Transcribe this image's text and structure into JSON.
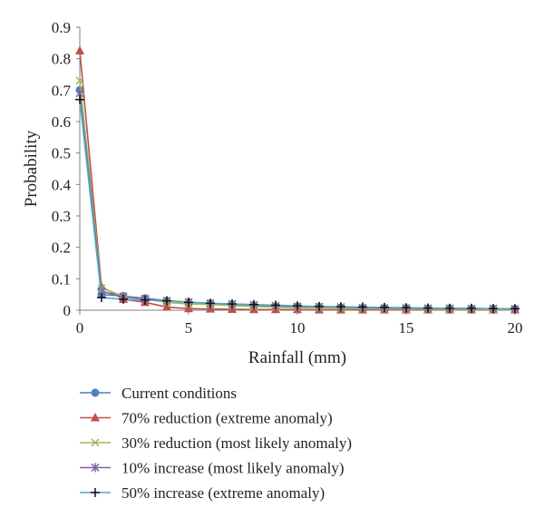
{
  "chart_data": {
    "type": "line",
    "title": "",
    "xlabel": "Rainfall (mm)",
    "ylabel": "Probability",
    "xlim": [
      0,
      20
    ],
    "ylim": [
      0,
      0.9
    ],
    "x_ticks": [
      0,
      5,
      10,
      15,
      20
    ],
    "y_ticks": [
      0,
      0.1,
      0.2,
      0.3,
      0.4,
      0.5,
      0.6,
      0.7,
      0.8,
      0.9
    ],
    "x_tick_labels": [
      "0",
      "5",
      "10",
      "15",
      "20"
    ],
    "y_tick_labels": [
      "0",
      "0.1",
      "0.2",
      "0.3",
      "0.4",
      "0.5",
      "0.6",
      "0.7",
      "0.8",
      "0.9"
    ],
    "grid": false,
    "legend_position": "bottom",
    "x": [
      0,
      1,
      2,
      3,
      4,
      5,
      6,
      7,
      8,
      9,
      10,
      11,
      12,
      13,
      14,
      15,
      16,
      17,
      18,
      19,
      20
    ],
    "series": [
      {
        "name": "Current conditions",
        "marker": "circle",
        "color": "#4F81BD",
        "values": [
          0.7,
          0.05,
          0.045,
          0.038,
          0.03,
          0.025,
          0.022,
          0.018,
          0.015,
          0.012,
          0.011,
          0.01,
          0.008,
          0.007,
          0.006,
          0.006,
          0.005,
          0.005,
          0.004,
          0.004,
          0.004
        ]
      },
      {
        "name": "70% reduction (extreme anomaly)",
        "marker": "triangle",
        "color": "#C0504D",
        "values": [
          0.825,
          0.075,
          0.035,
          0.025,
          0.01,
          0.005,
          0.004,
          0.003,
          0.002,
          0.002,
          0.002,
          0.001,
          0.001,
          0.001,
          0.001,
          0.001,
          0.001,
          0.001,
          0.001,
          0.001,
          0.001
        ]
      },
      {
        "name": "30% reduction (most likely anomaly)",
        "marker": "x",
        "color": "#9BBB59",
        "values": [
          0.73,
          0.07,
          0.045,
          0.035,
          0.025,
          0.02,
          0.018,
          0.015,
          0.012,
          0.01,
          0.008,
          0.007,
          0.006,
          0.005,
          0.004,
          0.004,
          0.003,
          0.003,
          0.003,
          0.002,
          0.002
        ]
      },
      {
        "name": "10% increase (most likely anomaly)",
        "marker": "star",
        "color": "#8064A2",
        "values": [
          0.69,
          0.06,
          0.042,
          0.036,
          0.03,
          0.026,
          0.022,
          0.02,
          0.017,
          0.014,
          0.012,
          0.011,
          0.01,
          0.008,
          0.007,
          0.007,
          0.006,
          0.006,
          0.005,
          0.005,
          0.004
        ]
      },
      {
        "name": "50% increase (extreme anomaly)",
        "marker": "plus",
        "color": "#4BACC6",
        "values": [
          0.67,
          0.04,
          0.035,
          0.032,
          0.03,
          0.025,
          0.022,
          0.02,
          0.018,
          0.016,
          0.014,
          0.012,
          0.011,
          0.01,
          0.009,
          0.008,
          0.007,
          0.006,
          0.006,
          0.005,
          0.005
        ]
      }
    ]
  }
}
